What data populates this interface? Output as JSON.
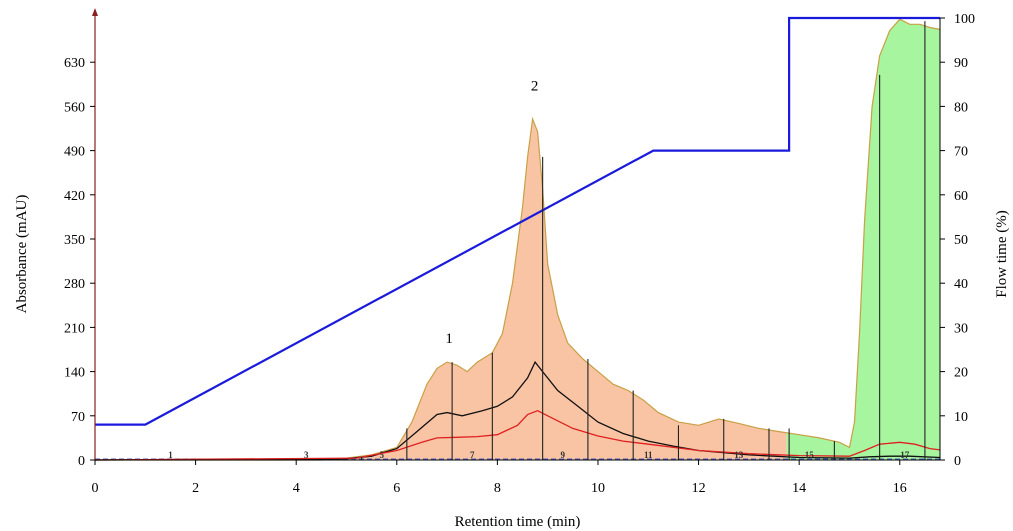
{
  "chart_data": {
    "type": "line",
    "xlabel": "Retention time (min)",
    "ylabel": "Absorbance (mAU)",
    "y2label": "Flow time (%)",
    "xlim": [
      0,
      16.8
    ],
    "ylim": [
      0,
      700
    ],
    "y2lim": [
      0,
      100
    ],
    "x_ticks": [
      "0",
      "2",
      "4",
      "6",
      "8",
      "10",
      "12",
      "14",
      "16"
    ],
    "y_ticks": [
      "0",
      "70",
      "140",
      "210",
      "280",
      "350",
      "420",
      "490",
      "560",
      "630"
    ],
    "y2_ticks": [
      "0",
      "10",
      "20",
      "30",
      "40",
      "50",
      "60",
      "70",
      "80",
      "90",
      "100"
    ],
    "colors": {
      "absorbance_fill": "#f9c4a4",
      "absorbance_line": "#c8a046",
      "green_fill": "#a8f5a0",
      "gradient": "#1a1adc",
      "black_trace": "#111111",
      "red_trace": "#e02020",
      "baseline": "#5060c0"
    },
    "peak_labels": [
      {
        "label": "1",
        "x": 7.0,
        "y": 185
      },
      {
        "label": "2",
        "x": 8.7,
        "y": 585
      }
    ],
    "fraction_labels": [
      {
        "label": "1",
        "x": 1.5
      },
      {
        "label": "3",
        "x": 4.2
      },
      {
        "label": "5",
        "x": 5.7
      },
      {
        "label": "7",
        "x": 7.5
      },
      {
        "label": "9",
        "x": 9.3
      },
      {
        "label": "11",
        "x": 11.0
      },
      {
        "label": "13",
        "x": 12.8
      },
      {
        "label": "15",
        "x": 14.2
      },
      {
        "label": "17",
        "x": 16.1
      }
    ],
    "fraction_lines": [
      {
        "x": 5.3,
        "y": 5
      },
      {
        "x": 6.2,
        "y": 50
      },
      {
        "x": 7.1,
        "y": 155
      },
      {
        "x": 7.9,
        "y": 170
      },
      {
        "x": 8.9,
        "y": 480
      },
      {
        "x": 9.8,
        "y": 160
      },
      {
        "x": 10.7,
        "y": 110
      },
      {
        "x": 11.6,
        "y": 55
      },
      {
        "x": 12.5,
        "y": 65
      },
      {
        "x": 13.4,
        "y": 50
      },
      {
        "x": 13.8,
        "y": 50
      },
      {
        "x": 14.7,
        "y": 30
      },
      {
        "x": 15.6,
        "y": 610
      },
      {
        "x": 16.5,
        "y": 695
      }
    ],
    "series": [
      {
        "key": "absorbance",
        "x": [
          0,
          4.5,
          5.0,
          5.5,
          6.0,
          6.3,
          6.6,
          6.8,
          7.0,
          7.2,
          7.4,
          7.6,
          7.9,
          8.1,
          8.3,
          8.5,
          8.6,
          8.7,
          8.8,
          8.9,
          9.0,
          9.2,
          9.4,
          9.7,
          10.0,
          10.3,
          10.6,
          10.9,
          11.2,
          11.6,
          12.0,
          12.4,
          12.8,
          13.2,
          13.6,
          14.0,
          14.4,
          14.8,
          15.0,
          15.1,
          15.2,
          15.3,
          15.45,
          15.6,
          15.8,
          16.0,
          16.2,
          16.4,
          16.6,
          16.8
        ],
        "y": [
          0,
          0,
          3,
          8,
          20,
          60,
          120,
          145,
          155,
          150,
          140,
          155,
          170,
          200,
          280,
          400,
          480,
          540,
          520,
          430,
          310,
          230,
          185,
          160,
          140,
          120,
          110,
          95,
          75,
          60,
          55,
          65,
          58,
          50,
          45,
          40,
          35,
          28,
          20,
          60,
          200,
          380,
          560,
          640,
          680,
          698,
          690,
          690,
          685,
          682
        ]
      },
      {
        "key": "black_trace",
        "x": [
          0,
          5.0,
          5.5,
          6.0,
          6.4,
          6.8,
          7.0,
          7.3,
          7.7,
          8.0,
          8.3,
          8.6,
          8.75,
          8.9,
          9.2,
          9.6,
          10.0,
          10.5,
          11.0,
          11.5,
          12.0,
          13.0,
          14.0,
          15.0,
          15.4,
          15.8,
          16.2,
          16.8
        ],
        "y": [
          0,
          2,
          6,
          18,
          45,
          72,
          75,
          70,
          78,
          85,
          100,
          130,
          155,
          140,
          110,
          85,
          60,
          42,
          30,
          22,
          15,
          8,
          4,
          3,
          5,
          6,
          6,
          4
        ]
      },
      {
        "key": "red_trace",
        "x": [
          0,
          5.2,
          6.0,
          6.5,
          6.8,
          7.2,
          7.6,
          8.0,
          8.4,
          8.6,
          8.8,
          9.0,
          9.5,
          10.0,
          10.5,
          11.0,
          12.0,
          13.0,
          14.0,
          15.0,
          15.3,
          15.6,
          16.0,
          16.3,
          16.6,
          16.8
        ],
        "y": [
          0,
          3,
          15,
          28,
          35,
          36,
          37,
          40,
          55,
          72,
          78,
          70,
          50,
          38,
          30,
          25,
          15,
          10,
          7,
          6,
          15,
          25,
          28,
          25,
          18,
          16
        ]
      },
      {
        "key": "gradient",
        "axis": "right",
        "x": [
          0,
          1.0,
          11.1,
          13.8,
          13.8,
          16.8
        ],
        "y": [
          8,
          8,
          70,
          70,
          100,
          100
        ]
      }
    ]
  }
}
